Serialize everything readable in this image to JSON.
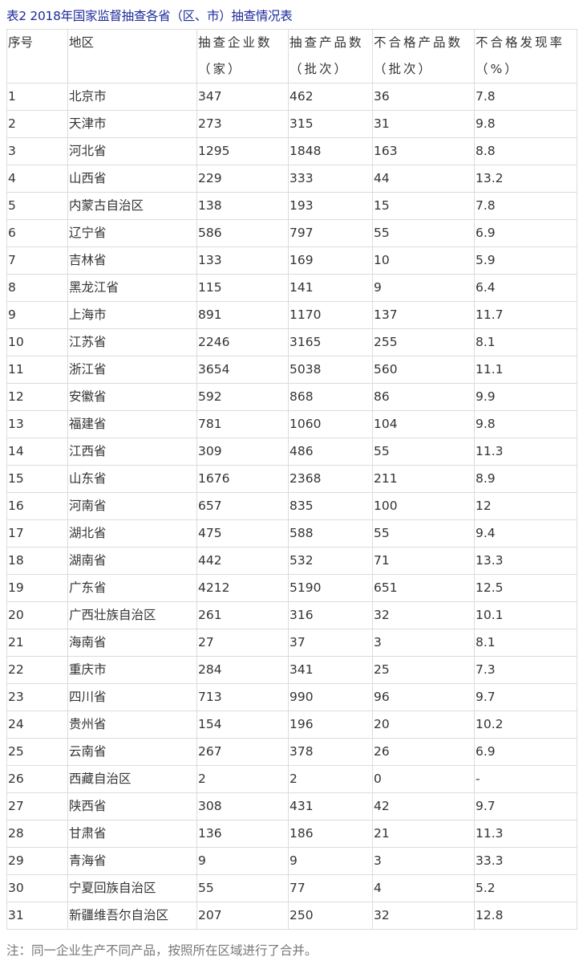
{
  "title": "表2  2018年国家监督抽查各省（区、市）抽查情况表",
  "headers": [
    {
      "line1": "序号",
      "line2": ""
    },
    {
      "line1": "地区",
      "line2": ""
    },
    {
      "line1": "抽查企业数",
      "line2": "（家）"
    },
    {
      "line1": "抽查产品数",
      "line2": "（批次）"
    },
    {
      "line1": "不合格产品数",
      "line2": "（批次）"
    },
    {
      "line1": "不合格发现率",
      "line2": "（%）"
    }
  ],
  "rows": [
    [
      "1",
      "北京市",
      "347",
      "462",
      "36",
      "7.8"
    ],
    [
      "2",
      "天津市",
      "273",
      "315",
      "31",
      "9.8"
    ],
    [
      "3",
      "河北省",
      "1295",
      "1848",
      "163",
      "8.8"
    ],
    [
      "4",
      "山西省",
      "229",
      "333",
      "44",
      "13.2"
    ],
    [
      "5",
      "内蒙古自治区",
      "138",
      "193",
      "15",
      "7.8"
    ],
    [
      "6",
      "辽宁省",
      "586",
      "797",
      "55",
      "6.9"
    ],
    [
      "7",
      "吉林省",
      "133",
      "169",
      "10",
      "5.9"
    ],
    [
      "8",
      "黑龙江省",
      "115",
      "141",
      "9",
      "6.4"
    ],
    [
      "9",
      "上海市",
      "891",
      "1170",
      "137",
      "11.7"
    ],
    [
      "10",
      "江苏省",
      "2246",
      "3165",
      "255",
      "8.1"
    ],
    [
      "11",
      "浙江省",
      "3654",
      "5038",
      "560",
      "11.1"
    ],
    [
      "12",
      "安徽省",
      "592",
      "868",
      "86",
      "9.9"
    ],
    [
      "13",
      "福建省",
      "781",
      "1060",
      "104",
      "9.8"
    ],
    [
      "14",
      "江西省",
      "309",
      "486",
      "55",
      "11.3"
    ],
    [
      "15",
      "山东省",
      "1676",
      "2368",
      "211",
      "8.9"
    ],
    [
      "16",
      "河南省",
      "657",
      "835",
      "100",
      "12"
    ],
    [
      "17",
      "湖北省",
      "475",
      "588",
      "55",
      "9.4"
    ],
    [
      "18",
      "湖南省",
      "442",
      "532",
      "71",
      "13.3"
    ],
    [
      "19",
      "广东省",
      "4212",
      "5190",
      "651",
      "12.5"
    ],
    [
      "20",
      "广西壮族自治区",
      "261",
      "316",
      "32",
      "10.1"
    ],
    [
      "21",
      "海南省",
      "27",
      "37",
      "3",
      "8.1"
    ],
    [
      "22",
      "重庆市",
      "284",
      "341",
      "25",
      "7.3"
    ],
    [
      "23",
      "四川省",
      "713",
      "990",
      "96",
      "9.7"
    ],
    [
      "24",
      "贵州省",
      "154",
      "196",
      "20",
      "10.2"
    ],
    [
      "25",
      "云南省",
      "267",
      "378",
      "26",
      "6.9"
    ],
    [
      "26",
      "西藏自治区",
      "2",
      "2",
      "0",
      "-"
    ],
    [
      "27",
      "陕西省",
      "308",
      "431",
      "42",
      "9.7"
    ],
    [
      "28",
      "甘肃省",
      "136",
      "186",
      "21",
      "11.3"
    ],
    [
      "29",
      "青海省",
      "9",
      "9",
      "3",
      "33.3"
    ],
    [
      "30",
      "宁夏回族自治区",
      "55",
      "77",
      "4",
      "5.2"
    ],
    [
      "31",
      "新疆维吾尔自治区",
      "207",
      "250",
      "32",
      "12.8"
    ]
  ],
  "note": "注：同一企业生产不同产品，按照所在区域进行了合并。"
}
